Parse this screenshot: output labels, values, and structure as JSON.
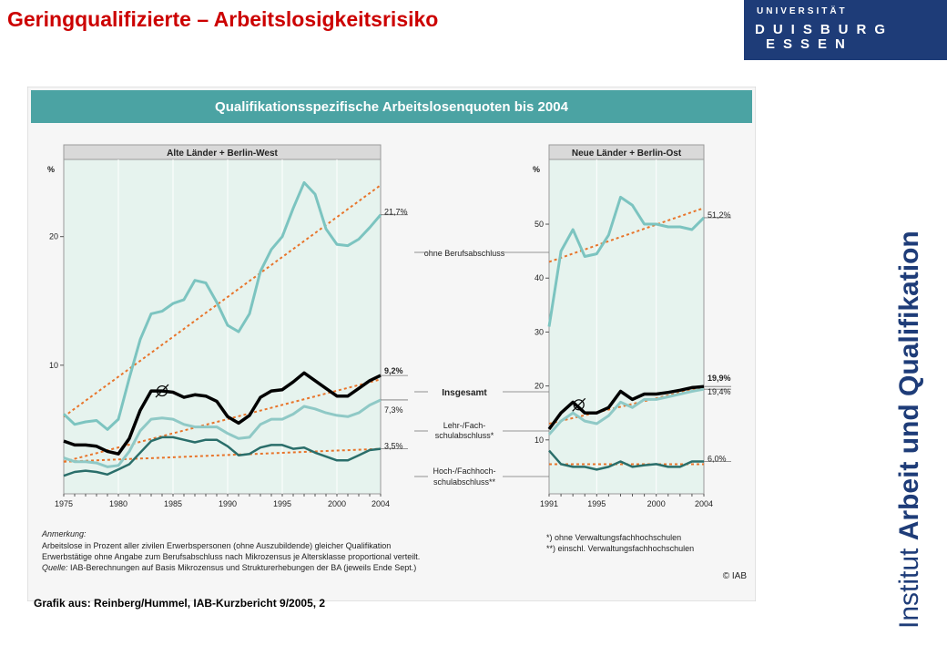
{
  "slide": {
    "title": "Geringqualifizierte – Arbeitslosigkeitsrisiko",
    "source": "Grafik aus: Reinberg/Hummel, IAB-Kurzbericht 9/2005, 2",
    "side_caption_light": "Institut",
    "side_caption_bold": "Arbeit und Qualifikation"
  },
  "logo": {
    "line1": "UNIVERSITÄT",
    "line2": "DUISBURG",
    "line3": "ESSEN",
    "color": "#1e3c78"
  },
  "colors": {
    "header_bar": "#4ba3a3",
    "panel_bg": "#e6f3ee",
    "ohne": "#7cc4c0",
    "insgesamt": "#000000",
    "lehr": "#8fc9c6",
    "hoch": "#2a6e6a",
    "trend": "#e8742a"
  },
  "chart_data": [
    {
      "type": "line",
      "title": "Qualifikationsspezifische Arbeitslosenquoten bis 2004",
      "subtitle": "Alte Länder + Berlin-West",
      "ylabel": "%",
      "xlim": [
        1975,
        2004
      ],
      "ylim": [
        0,
        26
      ],
      "x_ticks": [
        1975,
        1980,
        1985,
        1990,
        1995,
        2000,
        2004
      ],
      "y_ticks": [
        10,
        20
      ],
      "x": [
        1975,
        1976,
        1977,
        1978,
        1979,
        1980,
        1981,
        1982,
        1983,
        1984,
        1985,
        1986,
        1987,
        1988,
        1989,
        1990,
        1991,
        1992,
        1993,
        1994,
        1995,
        1996,
        1997,
        1998,
        1999,
        2000,
        2001,
        2002,
        2003,
        2004
      ],
      "series": [
        {
          "name": "ohne Berufsabschluss",
          "end_label": "21,7%",
          "color_key": "ohne",
          "values": [
            6.2,
            5.4,
            5.6,
            5.7,
            5.0,
            5.8,
            9.0,
            12.0,
            14.0,
            14.2,
            14.8,
            15.1,
            16.6,
            16.4,
            14.9,
            13.1,
            12.6,
            14.0,
            17.3,
            19.0,
            20.0,
            22.2,
            24.2,
            23.3,
            20.6,
            19.4,
            19.3,
            19.8,
            20.7,
            21.7
          ]
        },
        {
          "name": "Insgesamt",
          "end_label": "9,2%",
          "color_key": "insgesamt",
          "values": [
            4.1,
            3.8,
            3.8,
            3.7,
            3.3,
            3.1,
            4.3,
            6.5,
            8.0,
            8.0,
            7.9,
            7.5,
            7.7,
            7.6,
            7.2,
            6.0,
            5.5,
            6.1,
            7.5,
            8.0,
            8.1,
            8.7,
            9.4,
            8.8,
            8.2,
            7.6,
            7.6,
            8.2,
            8.8,
            9.2
          ]
        },
        {
          "name": "Lehr-/Fach-schulabschluss*",
          "end_label": "7,3%",
          "color_key": "lehr",
          "values": [
            2.8,
            2.5,
            2.5,
            2.4,
            2.1,
            2.2,
            3.3,
            4.9,
            5.8,
            5.9,
            5.8,
            5.4,
            5.2,
            5.2,
            5.2,
            4.7,
            4.3,
            4.4,
            5.4,
            5.8,
            5.8,
            6.2,
            6.8,
            6.6,
            6.3,
            6.1,
            6.0,
            6.3,
            6.9,
            7.3
          ]
        },
        {
          "name": "Hoch-/Fachhoch-schulabschluss**",
          "end_label": "3,5%",
          "color_key": "hoch",
          "values": [
            1.4,
            1.7,
            1.8,
            1.7,
            1.5,
            1.9,
            2.3,
            3.2,
            4.1,
            4.4,
            4.4,
            4.2,
            4.0,
            4.2,
            4.2,
            3.7,
            3.0,
            3.1,
            3.6,
            3.8,
            3.8,
            3.5,
            3.6,
            3.2,
            2.9,
            2.6,
            2.6,
            3.0,
            3.4,
            3.5
          ]
        }
      ],
      "trendlines": [
        {
          "series": "ohne Berufsabschluss",
          "from": [
            1975,
            6.0
          ],
          "to": [
            2004,
            24.0
          ]
        },
        {
          "series": "Insgesamt",
          "from": [
            1975,
            2.5
          ],
          "to": [
            2004,
            8.9
          ]
        },
        {
          "series": "Hoch-/Fachhoch-schulabschluss**",
          "from": [
            1975,
            2.5
          ],
          "to": [
            2004,
            3.5
          ]
        }
      ],
      "markers": [
        {
          "symbol": "Ø",
          "x": 1984,
          "y": 8.0
        }
      ],
      "grid": false
    },
    {
      "type": "line",
      "subtitle": "Neue Länder + Berlin-Ost",
      "ylabel": "%",
      "xlim": [
        1991,
        2004
      ],
      "ylim": [
        0,
        62
      ],
      "x_ticks": [
        1991,
        1995,
        2000,
        2004
      ],
      "y_ticks": [
        10,
        20,
        30,
        40,
        50
      ],
      "x": [
        1991,
        1992,
        1993,
        1994,
        1995,
        1996,
        1997,
        1998,
        1999,
        2000,
        2001,
        2002,
        2003,
        2004
      ],
      "series": [
        {
          "name": "ohne Berufsabschluss",
          "end_label": "51,2%",
          "color_key": "ohne",
          "values": [
            31.0,
            45.0,
            49.0,
            44.0,
            44.5,
            48.0,
            55.0,
            53.5,
            50.0,
            50.0,
            49.5,
            49.5,
            49.0,
            51.2
          ]
        },
        {
          "name": "Insgesamt",
          "end_label": "19,9%",
          "color_key": "insgesamt",
          "values": [
            12.0,
            15.0,
            17.0,
            15.0,
            15.0,
            16.0,
            19.0,
            17.5,
            18.5,
            18.5,
            18.8,
            19.2,
            19.7,
            19.9
          ]
        },
        {
          "name": "Lehr-/Fach-schulabschluss*",
          "end_label": "19,4%",
          "color_key": "lehr",
          "values": [
            11.0,
            13.5,
            15.0,
            13.5,
            13.0,
            14.5,
            17.0,
            16.0,
            17.5,
            17.5,
            18.0,
            18.5,
            19.0,
            19.4
          ]
        },
        {
          "name": "Hoch-/Fachhoch-schulabschluss**",
          "end_label": "6,0%",
          "color_key": "hoch",
          "values": [
            8.0,
            5.5,
            5.0,
            5.0,
            4.5,
            5.0,
            6.0,
            5.0,
            5.3,
            5.5,
            5.0,
            5.0,
            6.0,
            6.0
          ]
        }
      ],
      "trendlines": [
        {
          "series": "ohne Berufsabschluss",
          "from": [
            1991,
            43.0
          ],
          "to": [
            2004,
            53.0
          ]
        },
        {
          "series": "Insgesamt",
          "from": [
            1991,
            13.0
          ],
          "to": [
            2004,
            19.8
          ]
        },
        {
          "series": "Hoch-/Fachhoch-schulabschluss**",
          "from": [
            1991,
            5.5
          ],
          "to": [
            2004,
            5.5
          ]
        }
      ],
      "markers": [
        {
          "symbol": "Ø",
          "x": 1993.5,
          "y": 16.5
        }
      ],
      "grid": false
    }
  ],
  "center_labels": [
    "ohne Berufsabschluss",
    "Insgesamt",
    "Lehr-/Fach-",
    "schulabschluss*",
    "Hoch-/Fachhoch-",
    "schulabschluss**"
  ],
  "notes": {
    "heading": "Anmerkung:",
    "line1": "Arbeitslose in Prozent aller zivilen Erwerbspersonen (ohne Auszubildende) gleicher Qualifikation",
    "line2": "Erwerbstätige ohne Angabe zum Berufsabschluss nach Mikrozensus je Altersklasse proportional verteilt.",
    "source_label": "Quelle:",
    "source_text": "IAB-Berechnungen auf Basis Mikrozensus und Strukturerhebungen der BA (jeweils Ende Sept.)",
    "footnote1": "*)  ohne Verwaltungsfachhochschulen",
    "footnote2": "**) einschl. Verwaltungsfachhochschulen",
    "copyright": "© IAB"
  }
}
